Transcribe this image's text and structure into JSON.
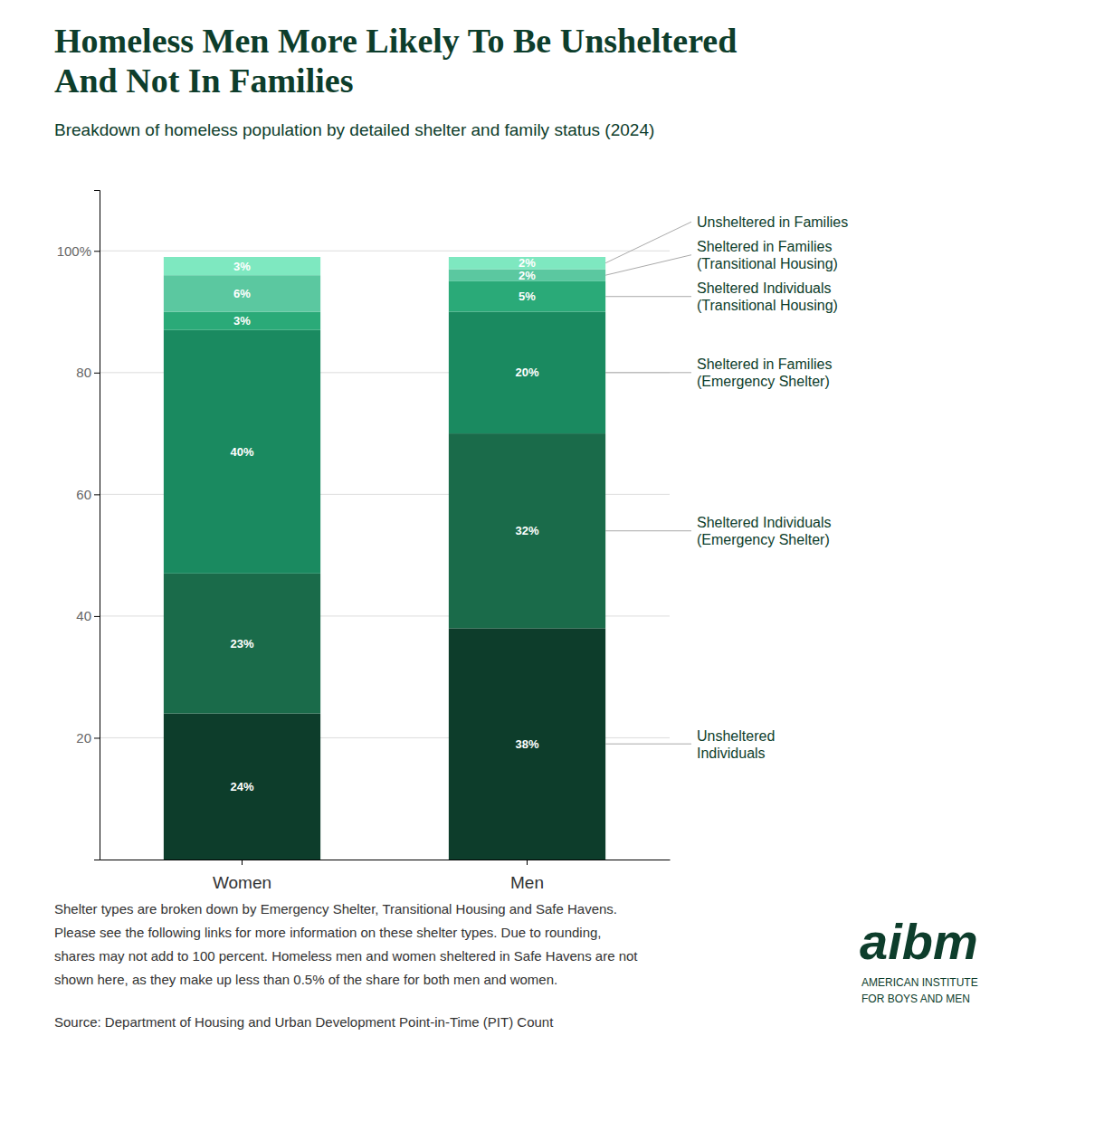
{
  "chart_data": {
    "type": "bar",
    "stacked": true,
    "title": "Homeless Men More Likely To Be Unsheltered\nAnd Not In Families",
    "subtitle": "Breakdown of homeless population by detailed shelter and family status (2024)",
    "categories": [
      "Women",
      "Men"
    ],
    "series": [
      {
        "name": "Unsheltered\nIndividuals",
        "color": "#0d3d2b",
        "values": [
          24,
          38
        ],
        "value_labels": [
          "24%",
          "38%"
        ]
      },
      {
        "name": "Sheltered Individuals\n(Emergency Shelter)",
        "color": "#1a6b4a",
        "values": [
          23,
          32
        ],
        "value_labels": [
          "23%",
          "32%"
        ]
      },
      {
        "name": "Sheltered in Families\n(Emergency Shelter)",
        "color": "#1a8a60",
        "values": [
          40,
          20
        ],
        "value_labels": [
          "40%",
          "20%"
        ]
      },
      {
        "name": "Sheltered Individuals\n(Transitional Housing)",
        "color": "#2aaa78",
        "values": [
          3,
          5
        ],
        "value_labels": [
          "3%",
          "5%"
        ]
      },
      {
        "name": "Sheltered in Families\n(Transitional Housing)",
        "color": "#5bc8a0",
        "values": [
          6,
          2
        ],
        "value_labels": [
          "6%",
          "2%"
        ]
      },
      {
        "name": "Unsheltered in Families",
        "color": "#7ee8c0",
        "values": [
          3,
          2
        ],
        "value_labels": [
          "3%",
          "2%"
        ]
      }
    ],
    "data_labels": true,
    "ylim": [
      0,
      110
    ],
    "yticks": [
      20,
      40,
      60,
      80,
      {
        "value": 100,
        "label": "100%"
      }
    ],
    "grid": true,
    "footnotes": [
      "Shelter types are broken down by Emergency Shelter, Transitional Housing and Safe Havens.",
      "Please see the following links for more information on these shelter types. Due to rounding,",
      "shares may not add to 100 percent. Homeless men and women sheltered in Safe Havens are not",
      "shown here, as they make up less than 0.5% of the share for both men and women."
    ],
    "source": "Source: Department of Housing and Urban Development Point-in-Time (PIT) Count",
    "logo": [
      "aibm",
      "AMERICAN INSTITUTE\nFOR BOYS AND MEN"
    ]
  }
}
